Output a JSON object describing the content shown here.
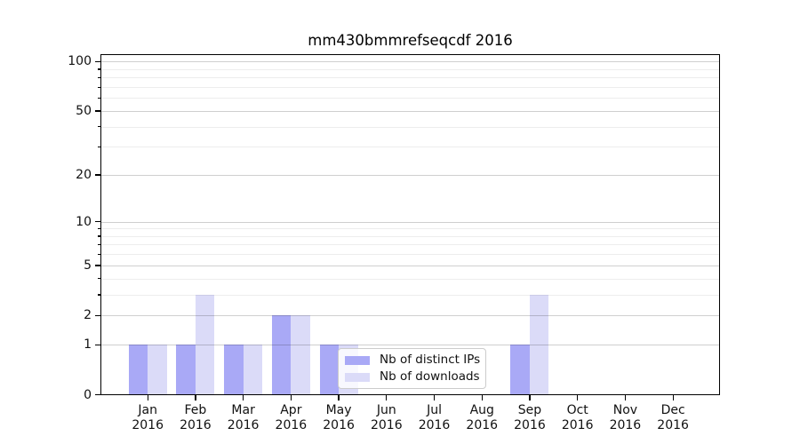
{
  "title": "mm430bmmrefseqcdf 2016",
  "chart_data": {
    "type": "bar",
    "title": "mm430bmmrefseqcdf 2016",
    "x_months": [
      "Jan",
      "Feb",
      "Mar",
      "Apr",
      "May",
      "Jun",
      "Jul",
      "Aug",
      "Sep",
      "Oct",
      "Nov",
      "Dec"
    ],
    "x_year": "2016",
    "series": [
      {
        "name": "Nb of distinct IPs",
        "color": "#a9a9f6",
        "values": [
          1,
          1,
          1,
          2,
          1,
          0,
          0,
          0,
          1,
          0,
          0,
          0
        ]
      },
      {
        "name": "Nb of downloads",
        "color": "#dbdbf8",
        "values": [
          1,
          3,
          1,
          2,
          1,
          0,
          0,
          0,
          3,
          0,
          0,
          0
        ]
      }
    ],
    "y_scale": "log10(1+value)",
    "ylim": [
      0,
      112
    ],
    "y_major_ticks": [
      0,
      1,
      2,
      5,
      10,
      20,
      50,
      100
    ],
    "y_minor_ticks": [
      3,
      4,
      6,
      7,
      8,
      9,
      30,
      40,
      60,
      70,
      80,
      90
    ],
    "grid": "horizontal",
    "legend": {
      "position": "lower center",
      "labels": [
        "Nb of distinct IPs",
        "Nb of downloads"
      ]
    }
  }
}
